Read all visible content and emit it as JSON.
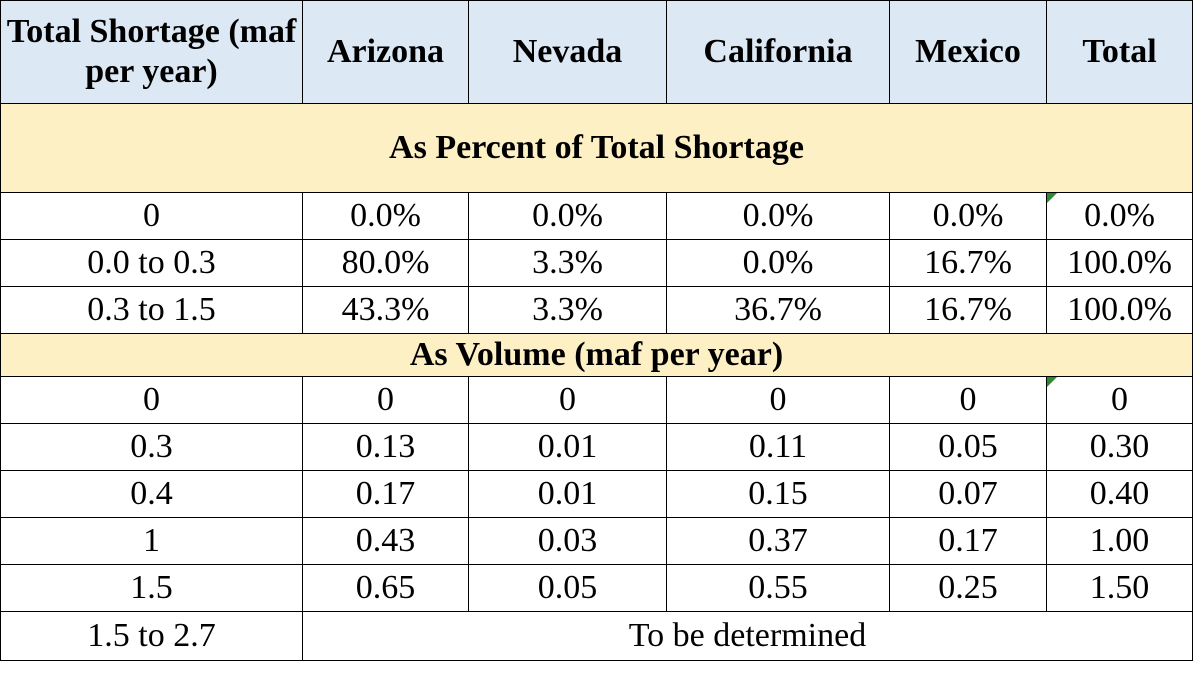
{
  "header": {
    "first": "Total Shortage (maf per year)",
    "columns": [
      "Arizona",
      "Nevada",
      "California",
      "Mexico",
      "Total"
    ]
  },
  "section_percent": {
    "title": "As Percent of Total Shortage",
    "rows": [
      {
        "label": "0",
        "values": [
          "0.0%",
          "0.0%",
          "0.0%",
          "0.0%",
          "0.0%"
        ]
      },
      {
        "label": "0.0 to 0.3",
        "values": [
          "80.0%",
          "3.3%",
          "0.0%",
          "16.7%",
          "100.0%"
        ]
      },
      {
        "label": "0.3 to 1.5",
        "values": [
          "43.3%",
          "3.3%",
          "36.7%",
          "16.7%",
          "100.0%"
        ]
      }
    ]
  },
  "section_volume": {
    "title": "As Volume (maf per year)",
    "rows": [
      {
        "label": "0",
        "values": [
          "0",
          "0",
          "0",
          "0",
          "0"
        ]
      },
      {
        "label": "0.3",
        "values": [
          "0.13",
          "0.01",
          "0.11",
          "0.05",
          "0.30"
        ]
      },
      {
        "label": "0.4",
        "values": [
          "0.17",
          "0.01",
          "0.15",
          "0.07",
          "0.40"
        ]
      },
      {
        "label": "1",
        "values": [
          "0.43",
          "0.03",
          "0.37",
          "0.17",
          "1.00"
        ]
      },
      {
        "label": "1.5",
        "values": [
          "0.65",
          "0.05",
          "0.55",
          "0.25",
          "1.50"
        ]
      }
    ]
  },
  "last_row": {
    "label": "1.5 to 2.7",
    "note": "To be determined"
  },
  "colors": {
    "header_bg": "#dde8f5",
    "section_bg": "#fcf0c4",
    "comment_marker": "#2f8a2f"
  }
}
